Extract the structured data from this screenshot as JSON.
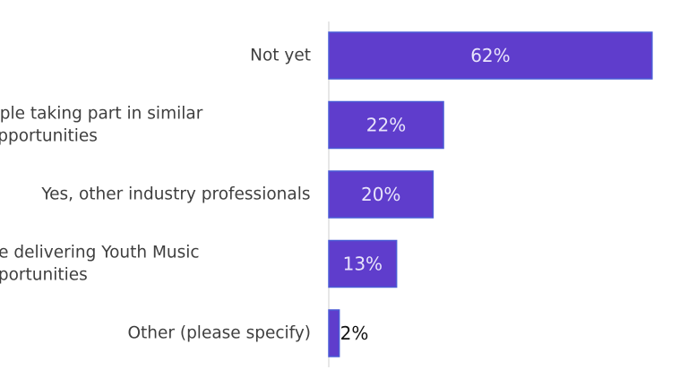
{
  "chart_data": {
    "type": "bar",
    "orientation": "horizontal",
    "categories": [
      [
        "Not yet"
      ],
      [
        "Yes, other people taking part in similar",
        "opportunities"
      ],
      [
        "Yes, other industry professionals"
      ],
      [
        "Yes, other people delivering Youth Music",
        "opportunities"
      ],
      [
        "Other (please specify)"
      ]
    ],
    "values": [
      62,
      22,
      20,
      13,
      2
    ],
    "value_labels": [
      "62%",
      "22%",
      "20%",
      "13%",
      "2%"
    ],
    "xlim": [
      0,
      100
    ],
    "grid": false,
    "legend": "none",
    "colors": {
      "bar": "#5f3dcc",
      "bar_border": "#4a5bd6",
      "label_inside": "#e8e4fb",
      "label_outside": "#111111",
      "category_text": "#3f3f3f",
      "axis": "#cfcfcf"
    }
  }
}
